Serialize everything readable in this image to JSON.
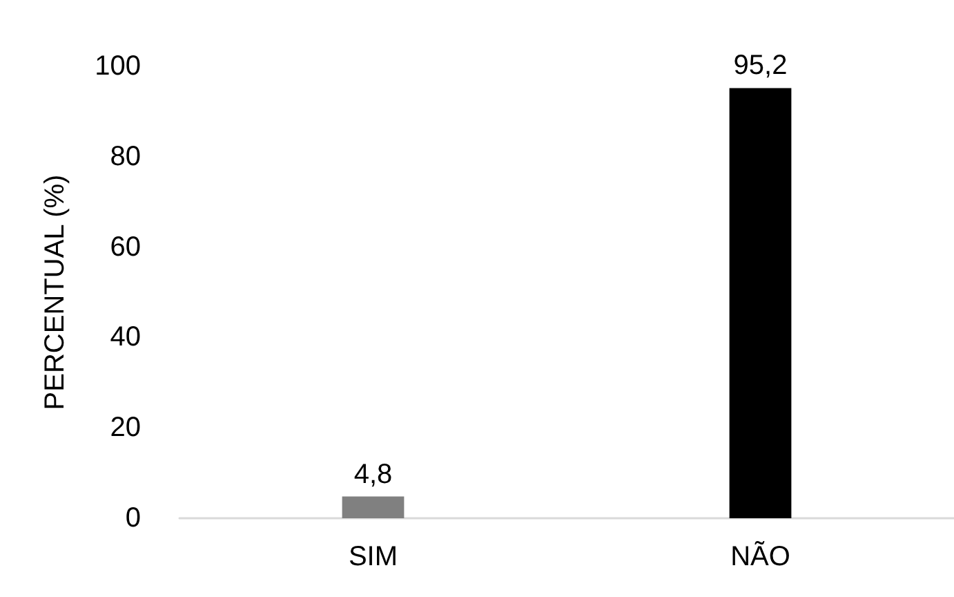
{
  "chart_data": {
    "type": "bar",
    "ylabel": "PERCENTUAL (%)",
    "categories": [
      "SIM",
      "NÃO"
    ],
    "values": [
      4.8,
      95.2
    ],
    "colors": [
      "#808080",
      "#000000"
    ],
    "value_labels": [
      "4,8",
      "95,2"
    ],
    "ylim": [
      0,
      100
    ],
    "yticks": [
      0,
      20,
      40,
      60,
      80,
      100
    ],
    "grid": false
  }
}
